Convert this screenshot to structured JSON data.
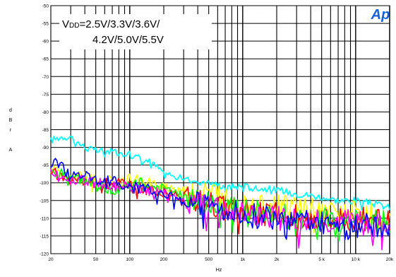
{
  "chart_data": {
    "type": "line",
    "xscale": "log",
    "xlim": [
      20,
      20000
    ],
    "ylim": [
      -120,
      -50
    ],
    "yticks": [
      -50,
      -55,
      -60,
      -65,
      -70,
      -75,
      -80,
      -85,
      -90,
      -95,
      -100,
      -105,
      -110,
      -115,
      -120
    ],
    "xticks": [
      {
        "value": 20,
        "label": "20"
      },
      {
        "value": 50,
        "label": "50"
      },
      {
        "value": 100,
        "label": "100"
      },
      {
        "value": 200,
        "label": "200"
      },
      {
        "value": 500,
        "label": "500"
      },
      {
        "value": 1000,
        "label": "1k"
      },
      {
        "value": 2000,
        "label": "2k"
      },
      {
        "value": 5000,
        "label": "5 k"
      },
      {
        "value": 10000,
        "label": "10 k"
      },
      {
        "value": 20000,
        "label": "20k"
      }
    ],
    "xlabel": "Hz",
    "ylabel_lines": [
      "d",
      "B",
      "r",
      "",
      "A"
    ],
    "grid": true,
    "annotation": {
      "prefix": "V",
      "sub": "DD",
      "line1_rest": "=2.5V/3.3V/3.6V/",
      "line2": "4.2V/5.0V/5.5V"
    },
    "logo_text": "Ap",
    "series": [
      {
        "color": "#00ffff",
        "x": [
          20,
          25,
          30,
          40,
          50,
          70,
          100,
          150,
          200,
          300,
          500,
          700,
          1000,
          2000,
          3000,
          5000,
          7000,
          10000,
          15000,
          20000
        ],
        "y": [
          -88,
          -87,
          -87,
          -90,
          -91,
          -91,
          -92,
          -94,
          -97,
          -99,
          -100,
          -101,
          -101,
          -102,
          -103,
          -104,
          -105,
          -105,
          -106,
          -107
        ]
      },
      {
        "color": "#ffff00",
        "x": [
          20,
          30,
          50,
          80,
          100,
          150,
          200,
          300,
          500,
          700,
          1000,
          2000,
          3000,
          5000,
          10000,
          20000
        ],
        "y": [
          -96,
          -98,
          -99,
          -100,
          -99,
          -100,
          -101,
          -102,
          -103,
          -104,
          -105,
          -106,
          -107,
          -108,
          -108,
          -110
        ]
      },
      {
        "color": "#ff0000",
        "x": [
          20,
          30,
          50,
          80,
          100,
          150,
          200,
          300,
          500,
          700,
          1000,
          2000,
          3000,
          5000,
          10000,
          20000
        ],
        "y": [
          -97,
          -99,
          -100,
          -100,
          -101,
          -102,
          -103,
          -104,
          -106,
          -107,
          -108,
          -109,
          -109,
          -110,
          -110,
          -111
        ]
      },
      {
        "color": "#00ff00",
        "x": [
          20,
          30,
          50,
          80,
          100,
          150,
          200,
          300,
          500,
          700,
          1000,
          2000,
          3000,
          5000,
          10000,
          20000
        ],
        "y": [
          -97,
          -98,
          -101,
          -102,
          -100,
          -100,
          -102,
          -104,
          -106,
          -107,
          -108,
          -109,
          -110,
          -110,
          -111,
          -111
        ]
      },
      {
        "color": "#ff00ff",
        "x": [
          20,
          30,
          50,
          80,
          100,
          150,
          200,
          300,
          500,
          700,
          1000,
          2000,
          3000,
          5000,
          10000,
          20000
        ],
        "y": [
          -97,
          -99,
          -100,
          -101,
          -101,
          -102,
          -103,
          -105,
          -107,
          -108,
          -109,
          -110,
          -110,
          -111,
          -111,
          -112
        ]
      },
      {
        "color": "#0000ff",
        "x": [
          20,
          25,
          30,
          50,
          80,
          100,
          150,
          200,
          300,
          500,
          700,
          1000,
          2000,
          3000,
          5000,
          10000,
          20000
        ],
        "y": [
          -94,
          -95,
          -97,
          -99,
          -100,
          -101,
          -102,
          -103,
          -105,
          -106,
          -108,
          -109,
          -110,
          -111,
          -111,
          -112,
          -112
        ]
      }
    ]
  }
}
